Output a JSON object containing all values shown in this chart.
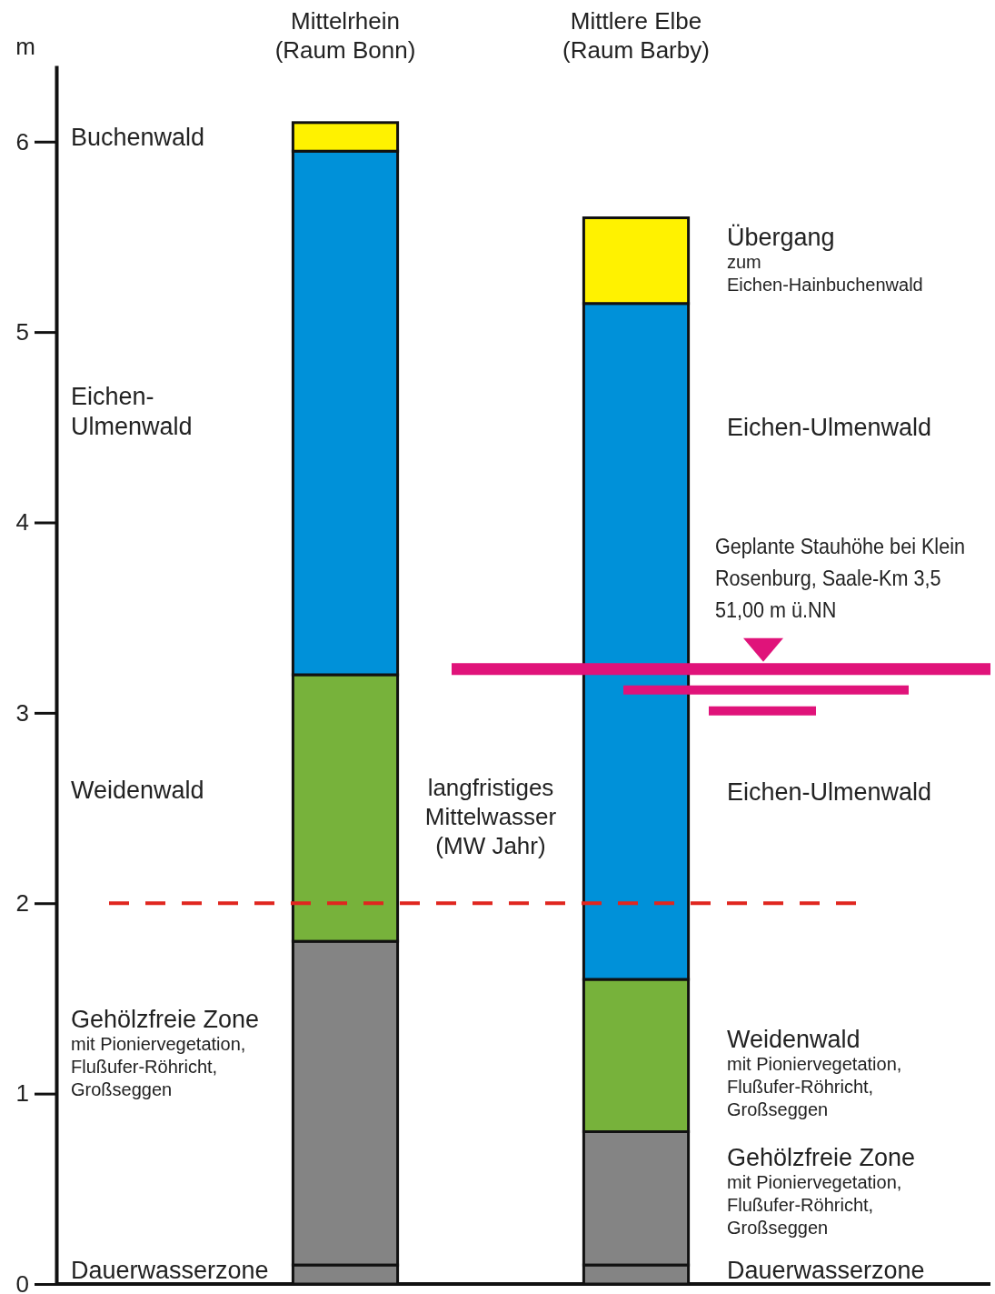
{
  "chart_data": {
    "type": "bar",
    "stacked": true,
    "ylabel": "m",
    "categories": [
      "Mittelrhein\n(Raum Bonn)",
      "Mittlere Elbe\n(Raum Barby)"
    ],
    "series": [
      {
        "color": "#848484",
        "values": [
          0.1,
          0.1
        ]
      },
      {
        "color": "#848484",
        "values": [
          1.7,
          0.7
        ]
      },
      {
        "color": "#77b23b",
        "values": [
          1.4,
          0.8
        ]
      },
      {
        "color": "#0091d9",
        "values": [
          2.75,
          3.55
        ]
      },
      {
        "color": "#fff200",
        "values": [
          0.15,
          0.45
        ]
      }
    ],
    "ylim": [
      0,
      6.4
    ],
    "yticks": [
      0,
      1,
      2,
      3,
      4,
      5,
      6
    ],
    "grid": false,
    "ref_lines": [
      {
        "axis": "y",
        "value": 2,
        "label": "langfristiges\nMittelwasser\n(MW Jahr)",
        "color": "#e0261f",
        "line_style": "dashed"
      },
      {
        "axis": "y",
        "value": 3.23,
        "label": "Geplante Stauhöhe bei Klein\nRosenburg, Saale-Km 3,5\n51,00 m ü.NN",
        "color": "#e0137a",
        "line_style": "solid"
      }
    ],
    "annotations": [
      "Buchenwald",
      "Eichen-\nUlmenwald",
      "Weidenwald",
      "Gehölzfreie Zone\nmit Pioniervegetation,\nFlußufer-Röhricht,\nGroßseggen",
      "Dauerwasserzone",
      "Übergang\nzum\nEichen-Hainbuchenwald",
      "Eichen-Ulmenwald",
      "Eichen-Ulmenwald",
      "Weidenwald\nmit Pioniervegetation,\nFlußufer-Röhricht,\nGroßseggen",
      "Gehölzfreie Zone\nmit Pioniervegetation,\nFlußufer-Röhricht,\nGroßseggen",
      "Dauerwasserzone"
    ]
  }
}
